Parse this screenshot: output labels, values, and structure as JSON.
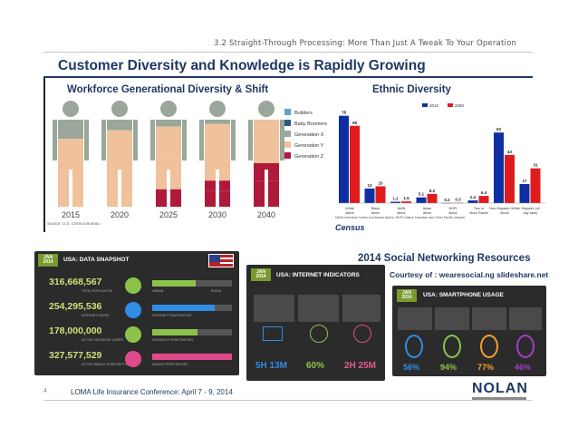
{
  "header": {
    "subtitle": "3.2 Straight-Through Processing: More Than Just A Tweak To Your Operation"
  },
  "title": "Customer Diversity and Knowledge is Rapidly Growing",
  "workforce": {
    "heading": "Workforce Generational Diversity & Shift",
    "legend": [
      "Builders",
      "Baby Boomers",
      "Generation X",
      "Generation Y",
      "Generation Z"
    ],
    "colors": [
      "#5da3d5",
      "#2d5986",
      "#9aa79a",
      "#efc29b",
      "#b01a3a"
    ],
    "years": [
      "2015",
      "2020",
      "2025",
      "2030",
      "2040"
    ],
    "source": "Source: U.S. Census Bureau"
  },
  "ethnic": {
    "heading": "Ethnic Diversity",
    "legend": [
      "2012",
      "2060"
    ],
    "colors": [
      "#0e2fa3",
      "#e01b1b"
    ],
    "footnote": "NAIN=American Indian and Alaska Native; NHPI=Native Hawaiian and Other Pacific Islander",
    "census": "Census"
  },
  "social": {
    "heading": "2014 Social Networking Resources",
    "courtesy": "Courtesy of : wearesocial.ng slideshare.net"
  },
  "snapshot": {
    "tag": "JAN 2014",
    "title": "USA: DATA SNAPSHOT",
    "rows": [
      {
        "num": "316,668,567",
        "label": "TOTAL POPULATION",
        "b1": "URBAN",
        "b2": "RURAL"
      },
      {
        "num": "254,295,536",
        "label": "INTERNET USERS",
        "b1": "INTERNET PENETRATION",
        "b2": ""
      },
      {
        "num": "178,000,000",
        "label": "ACTIVE FACEBOOK USERS",
        "b1": "FACEBOOK PENETRATION",
        "b2": ""
      },
      {
        "num": "327,577,529",
        "label": "ACTIVE MOBILE SUBSCRIPTIONS",
        "b1": "MOBILE PENETRATION",
        "b2": ""
      }
    ]
  },
  "internet": {
    "tag": "JAN 2014",
    "title": "USA: INTERNET INDICATORS",
    "values": [
      "5H 13M",
      "60%",
      "2H 25M"
    ]
  },
  "smartphone": {
    "tag": "JAN 2014",
    "title": "USA: SMARTPHONE USAGE",
    "values": [
      "56%",
      "94%",
      "77%",
      "46%"
    ]
  },
  "footer": {
    "page": "4",
    "text": "LOMA Life Insurance Conference: April 7 - 9, 2014",
    "logo": "NOLAN"
  },
  "chart_data": {
    "type": "bar",
    "categories": [
      "White alone",
      "Black alone",
      "AIAN alone",
      "Asian alone",
      "NHPI alone",
      "Two or More Races",
      "Non-Hispanic White Alone",
      "Hispanic (of any race)"
    ],
    "series": [
      {
        "name": "2012",
        "values": [
          78,
          13,
          1.2,
          5.1,
          0.2,
          2.4,
          63,
          17
        ]
      },
      {
        "name": "2060",
        "values": [
          69,
          15,
          1.5,
          8.2,
          0.3,
          6.4,
          43,
          31
        ]
      }
    ],
    "value_labels": [
      [
        "78",
        "13",
        "1.2",
        "5.1",
        "0.2",
        "2.4",
        "63",
        "17"
      ],
      [
        "69",
        "15",
        "1.5",
        "8.2",
        "0.3",
        "6.4",
        "43",
        "31"
      ]
    ],
    "ylim": [
      0,
      85
    ]
  }
}
